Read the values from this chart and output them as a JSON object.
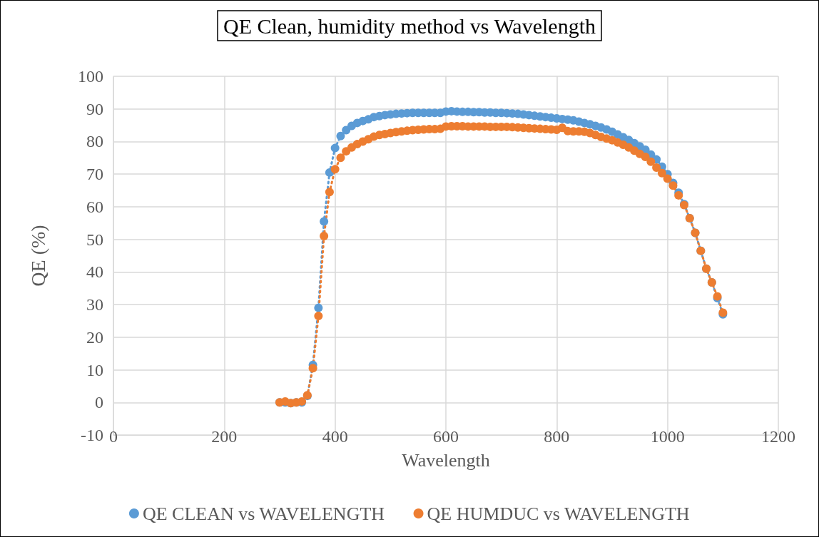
{
  "chart_data": {
    "type": "line",
    "title": "QE Clean, humidity method vs Wavelength",
    "xlabel": "Wavelength",
    "ylabel": "QE (%)",
    "x": [
      300,
      310,
      320,
      330,
      340,
      350,
      360,
      370,
      380,
      390,
      400,
      410,
      420,
      430,
      440,
      450,
      460,
      470,
      480,
      490,
      500,
      510,
      520,
      530,
      540,
      550,
      560,
      570,
      580,
      590,
      600,
      610,
      620,
      630,
      640,
      650,
      660,
      670,
      680,
      690,
      700,
      710,
      720,
      730,
      740,
      750,
      760,
      770,
      780,
      790,
      800,
      810,
      820,
      830,
      840,
      850,
      860,
      870,
      880,
      890,
      900,
      910,
      920,
      930,
      940,
      950,
      960,
      970,
      980,
      990,
      1000,
      1010,
      1020,
      1030,
      1040,
      1050,
      1060,
      1070,
      1080,
      1090,
      1100
    ],
    "series": [
      {
        "name": "QE CLEAN vs WAVELENGTH",
        "color": "#5b9bd5",
        "values": [
          0,
          0,
          -0.2,
          0,
          0,
          2,
          11.5,
          29,
          55.5,
          70.5,
          78,
          81.7,
          83.5,
          84.8,
          85.7,
          86.3,
          86.8,
          87.5,
          87.8,
          88.1,
          88.3,
          88.5,
          88.6,
          88.7,
          88.8,
          88.8,
          88.8,
          88.8,
          88.8,
          88.8,
          89.2,
          89.3,
          89.2,
          89.1,
          89.1,
          89,
          89,
          88.9,
          88.9,
          88.8,
          88.8,
          88.7,
          88.6,
          88.5,
          88.3,
          88.1,
          87.9,
          87.7,
          87.5,
          87.3,
          87.1,
          86.9,
          86.7,
          86.5,
          86.1,
          85.7,
          85.3,
          84.8,
          84.3,
          83.7,
          83,
          82.2,
          81.3,
          80.5,
          79.5,
          78.5,
          77.5,
          76,
          74.5,
          72.3,
          70,
          67.3,
          64.3,
          60.8,
          56.5,
          52,
          46.5,
          41,
          36.8,
          32,
          27
        ]
      },
      {
        "name": "QE HUMDUC vs WAVELENGTH",
        "color": "#ed7d31",
        "values": [
          0,
          0.3,
          -0.2,
          0,
          0.3,
          2.2,
          10.5,
          26.5,
          51,
          64.5,
          71.5,
          75,
          77,
          78.2,
          79.2,
          80,
          80.7,
          81.5,
          82,
          82.3,
          82.6,
          82.9,
          83.1,
          83.3,
          83.5,
          83.6,
          83.7,
          83.8,
          83.8,
          83.9,
          84.6,
          84.7,
          84.7,
          84.7,
          84.6,
          84.6,
          84.6,
          84.6,
          84.5,
          84.5,
          84.5,
          84.5,
          84.4,
          84.3,
          84.2,
          84.1,
          84,
          83.9,
          83.8,
          83.7,
          83.6,
          84.2,
          83.2,
          83.1,
          83.1,
          83,
          82.6,
          82,
          81.4,
          80.9,
          80.4,
          79.7,
          79,
          78.2,
          77.2,
          76.2,
          75.3,
          73.8,
          72,
          70.3,
          68.6,
          66.5,
          63.5,
          60.5,
          56.5,
          52,
          46.5,
          41,
          36.8,
          32.5,
          27.5
        ]
      }
    ],
    "xlim": [
      0,
      1200
    ],
    "xticks": [
      0,
      200,
      400,
      600,
      800,
      1000,
      1200
    ],
    "ylim": [
      -10,
      100
    ],
    "yticks": [
      -10,
      0,
      10,
      20,
      30,
      40,
      50,
      60,
      70,
      80,
      90,
      100
    ],
    "grid": true,
    "legend": "bottom",
    "marker": "circle",
    "line_style": "dotted"
  }
}
